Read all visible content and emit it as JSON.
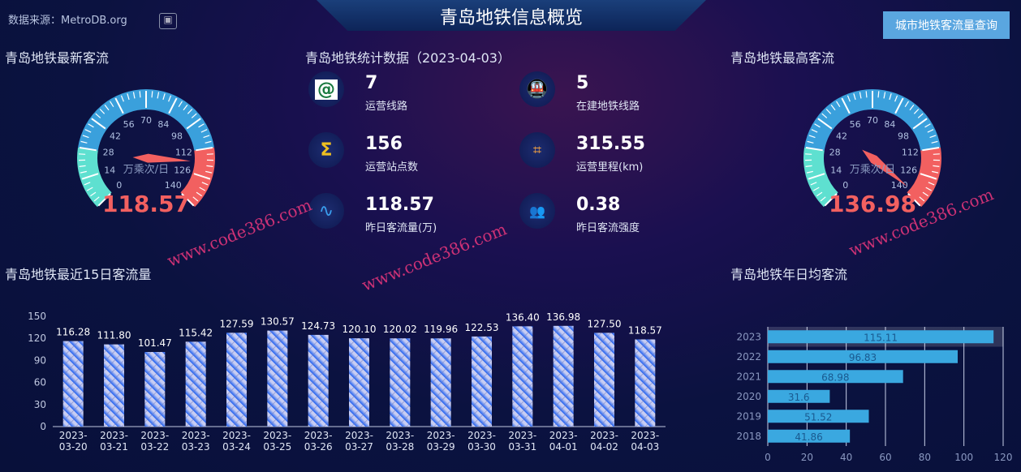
{
  "header": {
    "title": "青岛地铁信息概览",
    "source": "数据来源：MetroDB.org",
    "query_button": "城市地铁客流量查询"
  },
  "sections": {
    "latest": "青岛地铁最新客流",
    "stats": "青岛地铁统计数据（2023-04-03）",
    "highest": "青岛地铁最高客流",
    "recent15": "青岛地铁最近15日客流量",
    "yearly": "青岛地铁年日均客流"
  },
  "stats": [
    {
      "icon": "metro-logo-icon",
      "value": "7",
      "label": "运营线路"
    },
    {
      "icon": "train-icon",
      "value": "5",
      "label": "在建地铁线路"
    },
    {
      "icon": "sigma-icon",
      "value": "156",
      "label": "运营站点数"
    },
    {
      "icon": "route-map-icon",
      "value": "315.55",
      "label": "运营里程(km)"
    },
    {
      "icon": "pulse-icon",
      "value": "118.57",
      "label": "昨日客流量(万)"
    },
    {
      "icon": "crowd-icon",
      "value": "0.38",
      "label": "昨日客流强度"
    }
  ],
  "gauges": [
    {
      "value": 118.57,
      "display": "118.57",
      "unit": "万乘次/日",
      "min": 0,
      "max": 140,
      "ticks": [
        "0",
        "14",
        "28",
        "42",
        "56",
        "70",
        "84",
        "98",
        "112",
        "126",
        "140"
      ]
    },
    {
      "value": 136.98,
      "display": "136.98",
      "unit": "万乘次/日",
      "min": 0,
      "max": 140,
      "ticks": [
        "0",
        "14",
        "28",
        "42",
        "56",
        "70",
        "84",
        "98",
        "112",
        "126",
        "140"
      ]
    }
  ],
  "colors": {
    "gauge_low": "#5ee0d0",
    "gauge_mid": "#3aa0dc",
    "gauge_high": "#f26060",
    "bar_top": "#c8cdf2",
    "bar_bottom": "#1a5cf0",
    "hbar": "#3aa8e0"
  },
  "watermark": "www.code386.com",
  "chart_data": [
    {
      "type": "bar",
      "title": "青岛地铁最近15日客流量",
      "ylim": [
        0,
        150
      ],
      "yticks": [
        0,
        30,
        60,
        90,
        120,
        150
      ],
      "categories": [
        "2023-03-20",
        "2023-03-21",
        "2023-03-22",
        "2023-03-23",
        "2023-03-24",
        "2023-03-25",
        "2023-03-26",
        "2023-03-27",
        "2023-03-28",
        "2023-03-29",
        "2023-03-30",
        "2023-03-31",
        "2023-04-01",
        "2023-04-02",
        "2023-04-03"
      ],
      "values": [
        116.28,
        111.8,
        101.47,
        115.42,
        127.59,
        130.57,
        124.73,
        120.1,
        120.02,
        119.96,
        122.53,
        136.4,
        136.98,
        127.5,
        118.57
      ],
      "labels": [
        "116.28",
        "111.80",
        "101.47",
        "115.42",
        "127.59",
        "130.57",
        "124.73",
        "120.10",
        "120.02",
        "119.96",
        "122.53",
        "136.40",
        "136.98",
        "127.50",
        "118.57"
      ]
    },
    {
      "type": "bar",
      "orientation": "horizontal",
      "title": "青岛地铁年日均客流",
      "xlim": [
        0,
        120
      ],
      "xticks": [
        0,
        20,
        40,
        60,
        80,
        100,
        120
      ],
      "grid": true,
      "categories": [
        "2023",
        "2022",
        "2021",
        "2020",
        "2019",
        "2018"
      ],
      "values": [
        115.11,
        96.83,
        68.98,
        31.6,
        51.52,
        41.86
      ],
      "labels": [
        "115.11",
        "96.83",
        "68.98",
        "31.6",
        "51.52",
        "41.86"
      ]
    }
  ]
}
